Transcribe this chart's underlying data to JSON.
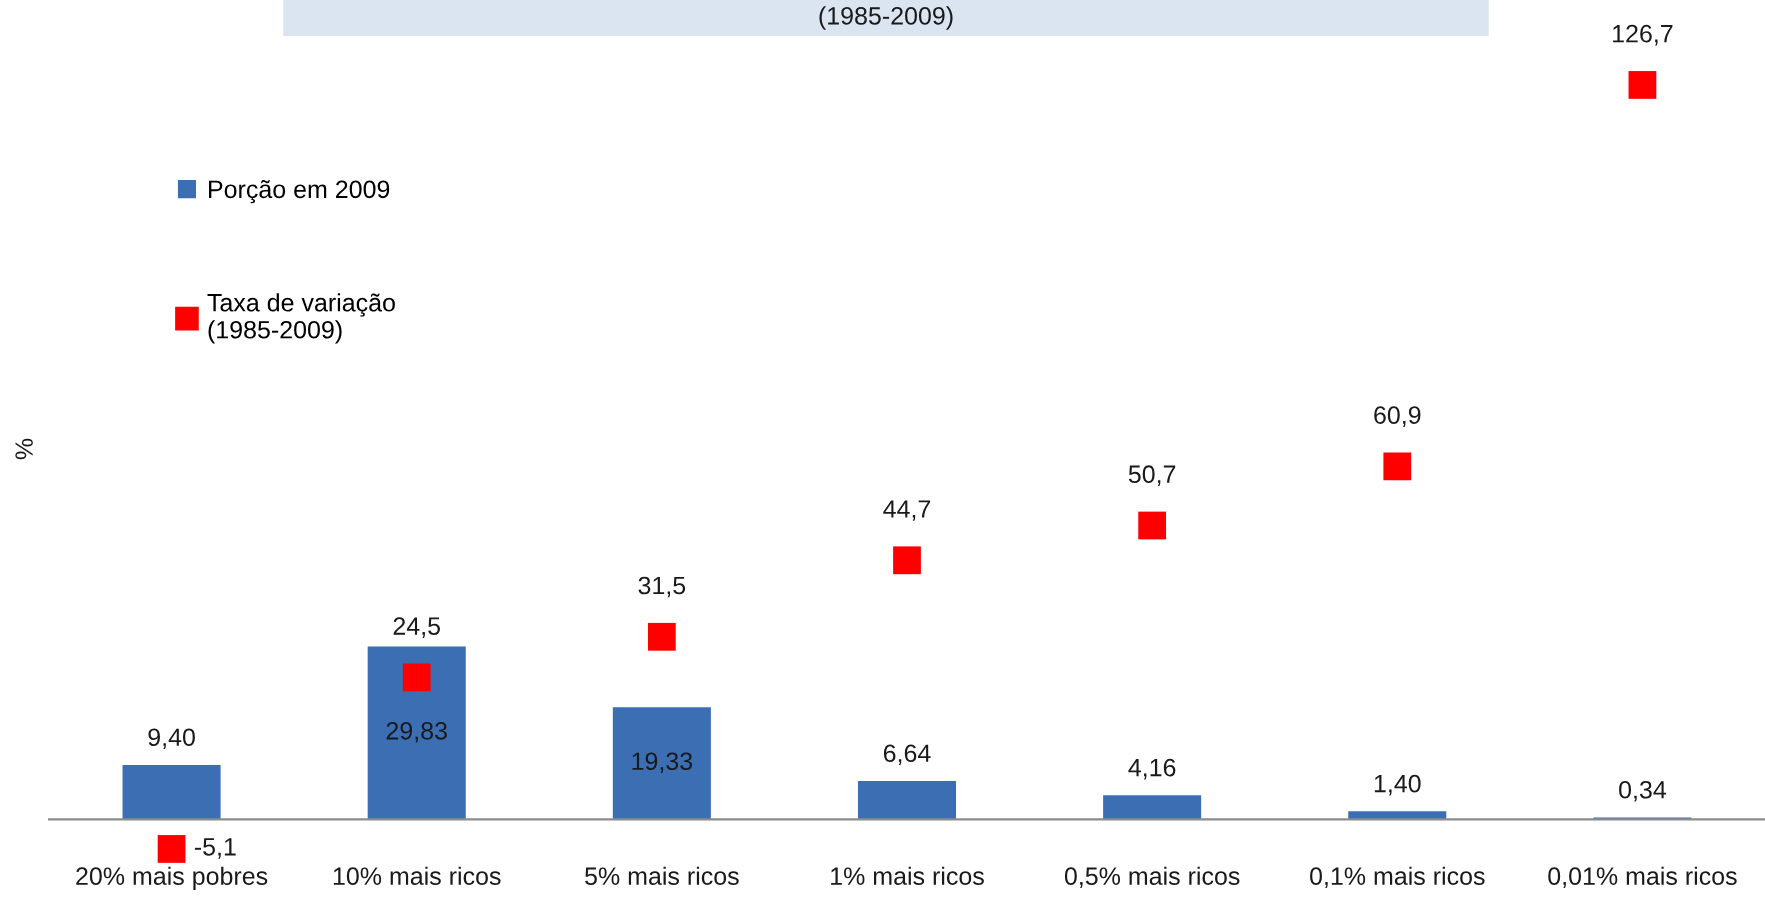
{
  "chart_data": {
    "type": "bar",
    "title": "(1985-2009)",
    "ylabel": "%",
    "categories": [
      "20% mais pobres",
      "10% mais ricos",
      "5% mais ricos",
      "1% mais ricos",
      "0,5% mais ricos",
      "0,1% mais ricos",
      "0,01% mais ricos"
    ],
    "series": [
      {
        "name": "Porção em 2009",
        "color": "#3b6eb3",
        "values": [
          9.4,
          29.83,
          19.33,
          6.64,
          4.16,
          1.4,
          0.34
        ],
        "value_labels": [
          "9,40",
          "29,83",
          "19,33",
          "6,64",
          "4,16",
          "1,40",
          "0,34"
        ]
      },
      {
        "name": "Taxa de variação\n(1985-2009)",
        "type": "scatter",
        "marker": "square",
        "color": "#ff0000",
        "values": [
          -5.1,
          24.5,
          31.5,
          44.7,
          50.7,
          60.9,
          126.7
        ],
        "value_labels": [
          "-5,1",
          "24,5",
          "31,5",
          "44,7",
          "50,7",
          "60,9",
          "126,7"
        ]
      }
    ],
    "legend": "top left",
    "tick_labels": "x"
  }
}
